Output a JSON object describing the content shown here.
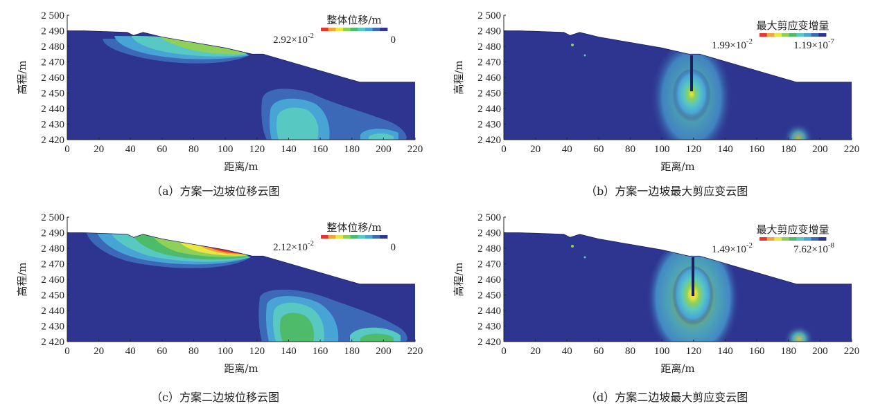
{
  "axes": {
    "xlabel": "距离/m",
    "ylabel": "高程/m",
    "xlim": [
      0,
      220
    ],
    "ylim": [
      2420,
      2500
    ],
    "x_ticks": [
      "0",
      "20",
      "40",
      "60",
      "80",
      "100",
      "120",
      "140",
      "160",
      "180",
      "200",
      "220"
    ],
    "y_ticks": [
      "2 500",
      "2 490",
      "2 480",
      "2 470",
      "2 460",
      "2 450",
      "2 440",
      "2 430",
      "2 420"
    ]
  },
  "colors": {
    "background_field": "#2d3590",
    "colorbar": [
      "#e8362a",
      "#f2a33a",
      "#e9e842",
      "#8fd05a",
      "#4dbb6a",
      "#58c8c2",
      "#49a4d6",
      "#3b69b8",
      "#2d3590"
    ]
  },
  "panels": [
    {
      "id": "a",
      "caption": "（a）方案一边坡位移云图",
      "legend_title": "整体位移/m",
      "legend_max_mantissa": "2.92×10",
      "legend_max_exp": "-2",
      "legend_min_mantissa": "0",
      "legend_min_exp": ""
    },
    {
      "id": "b",
      "caption": "（b）方案一边坡最大剪应变云图",
      "legend_title": "最大剪应变增量",
      "legend_max_mantissa": "1.99×10",
      "legend_max_exp": "-2",
      "legend_min_mantissa": "1.19×10",
      "legend_min_exp": "-7"
    },
    {
      "id": "c",
      "caption": "（c）方案二边坡位移云图",
      "legend_title": "整体位移/m",
      "legend_max_mantissa": "2.12×10",
      "legend_max_exp": "-2",
      "legend_min_mantissa": "0",
      "legend_min_exp": ""
    },
    {
      "id": "d",
      "caption": "（d）方案二边坡最大剪应变云图",
      "legend_title": "最大剪应变增量",
      "legend_max_mantissa": "1.49×10",
      "legend_max_exp": "-2",
      "legend_min_mantissa": "7.62×10",
      "legend_min_exp": "-8"
    }
  ]
}
